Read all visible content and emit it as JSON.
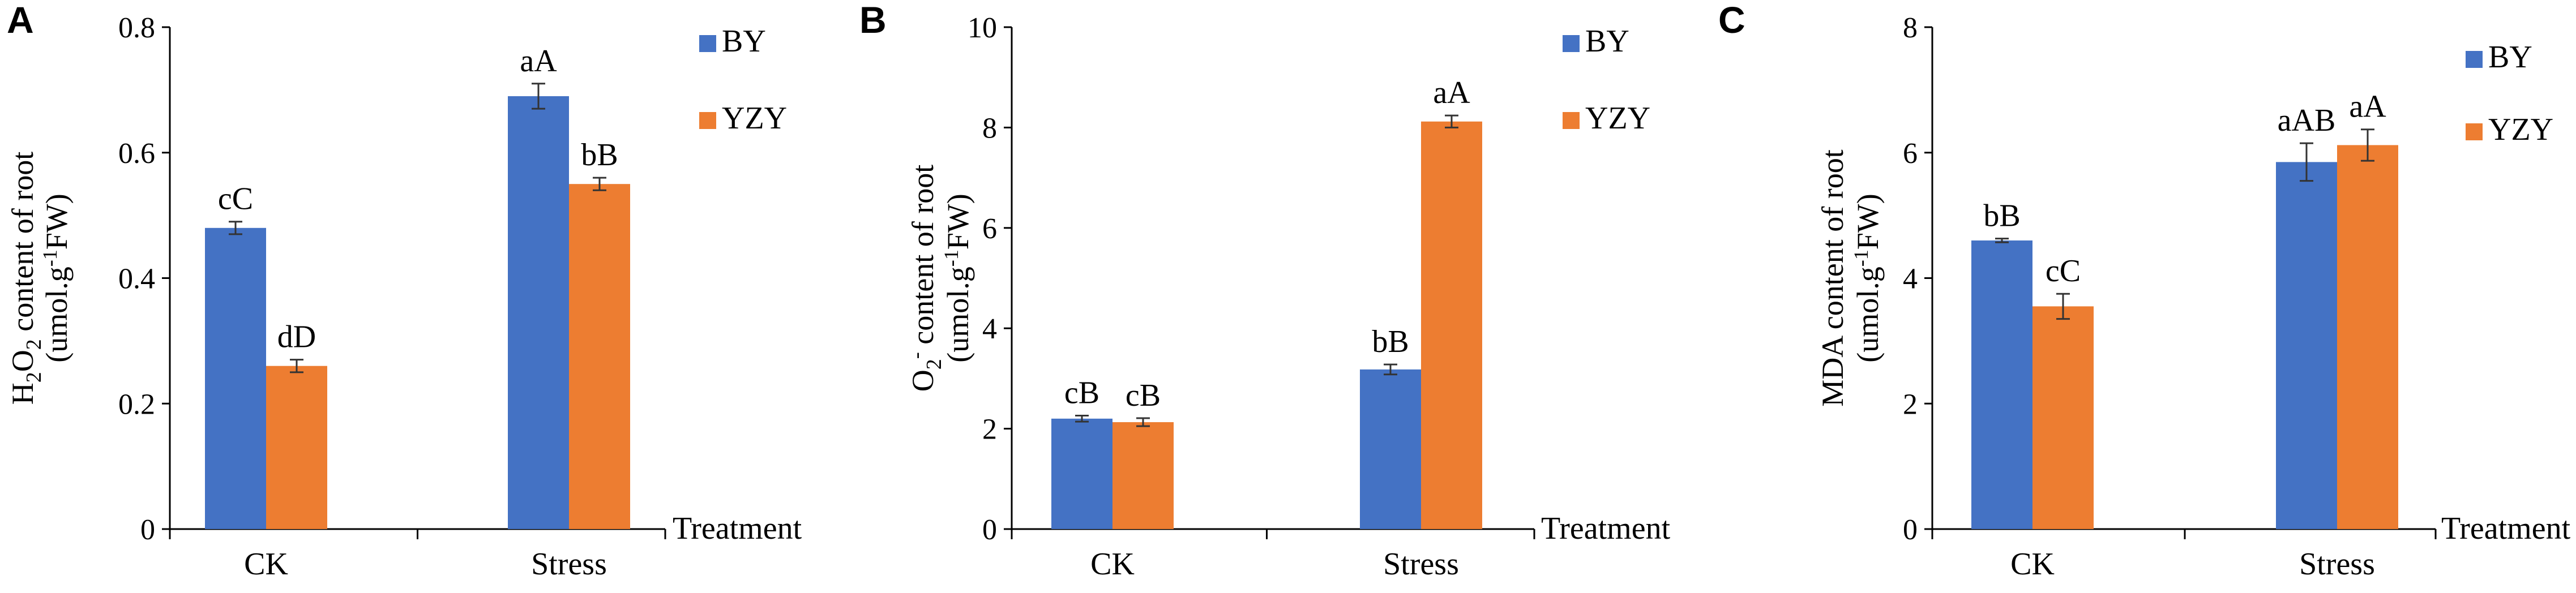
{
  "figure": {
    "colors": {
      "BY": "#4472C4",
      "YZY": "#ED7D31",
      "axis": "#000000",
      "errorbar": "#333333"
    }
  },
  "chart_data": [
    {
      "panel": "A",
      "type": "bar",
      "categories": [
        "CK",
        "Stress"
      ],
      "series": [
        {
          "name": "BY",
          "values": [
            0.48,
            0.69
          ],
          "errors": [
            0.01,
            0.02
          ],
          "labels": [
            "cC",
            "aA"
          ]
        },
        {
          "name": "YZY",
          "values": [
            0.26,
            0.55
          ],
          "errors": [
            0.01,
            0.01
          ],
          "labels": [
            "dD",
            "bB"
          ]
        }
      ],
      "ylabel": {
        "line1_parts": [
          "H",
          "2",
          "O",
          "2",
          " content of root"
        ],
        "line2_parts": [
          "(umol.g",
          "-1",
          "FW)"
        ]
      },
      "xlabel": "Treatment",
      "ylim": [
        0,
        0.8
      ],
      "yticks": [
        0,
        0.2,
        0.4,
        0.6,
        0.8
      ],
      "ytick_labels": [
        "0",
        "0.2",
        "0.4",
        "0.6",
        "0.8"
      ],
      "legend": "top-right"
    },
    {
      "panel": "B",
      "type": "bar",
      "categories": [
        "CK",
        "Stress"
      ],
      "series": [
        {
          "name": "BY",
          "values": [
            2.2,
            3.18
          ],
          "errors": [
            0.06,
            0.1
          ],
          "labels": [
            "cB",
            "bB"
          ]
        },
        {
          "name": "YZY",
          "values": [
            2.13,
            8.12
          ],
          "errors": [
            0.08,
            0.12
          ],
          "labels": [
            "cB",
            "aA"
          ]
        }
      ],
      "ylabel": {
        "line1_parts": [
          "O",
          "2",
          "-",
          " content of root"
        ],
        "line2_parts": [
          "(umol.g",
          "-1",
          "FW)"
        ]
      },
      "xlabel": "Treatment",
      "ylim": [
        0,
        10
      ],
      "yticks": [
        0,
        2,
        4,
        6,
        8,
        10
      ],
      "ytick_labels": [
        "0",
        "2",
        "4",
        "6",
        "8",
        "10"
      ],
      "legend": "top-right"
    },
    {
      "panel": "C",
      "type": "bar",
      "categories": [
        "CK",
        "Stress"
      ],
      "series": [
        {
          "name": "BY",
          "values": [
            4.6,
            5.85
          ],
          "errors": [
            0.03,
            0.3
          ],
          "labels": [
            "bB",
            "aAB"
          ]
        },
        {
          "name": "YZY",
          "values": [
            3.55,
            6.12
          ],
          "errors": [
            0.2,
            0.25
          ],
          "labels": [
            "cC",
            "aA"
          ]
        }
      ],
      "ylabel": {
        "line1_parts": [
          "MDA content of root"
        ],
        "line2_parts": [
          "(umol.g",
          "-1",
          "FW)"
        ]
      },
      "xlabel": "Treatment",
      "ylim": [
        0,
        8
      ],
      "yticks": [
        0,
        2,
        4,
        6,
        8
      ],
      "ytick_labels": [
        "0",
        "2",
        "4",
        "6",
        "8"
      ],
      "legend": "top-right"
    }
  ]
}
